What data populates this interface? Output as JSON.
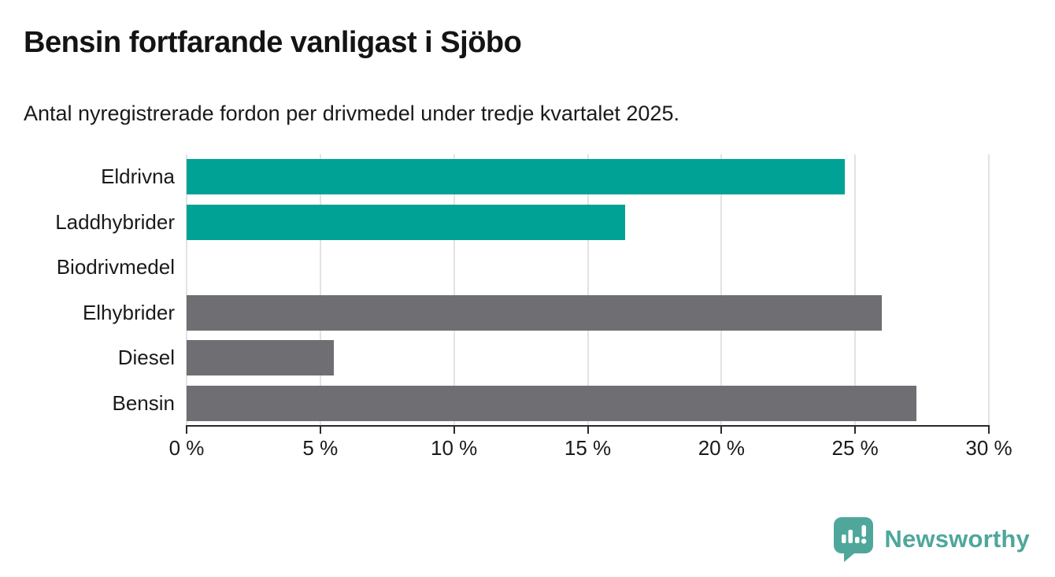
{
  "header": {
    "title": "Bensin fortfarande vanligast i Sjöbo",
    "subtitle": "Antal nyregistrerade fordon per drivmedel under tredje kvartalet 2025."
  },
  "chart_data": {
    "type": "bar",
    "orientation": "horizontal",
    "title": "Bensin fortfarande vanligast i Sjöbo",
    "subtitle": "Antal nyregistrerade fordon per drivmedel under tredje kvartalet 2025.",
    "categories": [
      "Eldrivna",
      "Laddhybrider",
      "Biodrivmedel",
      "Elhybrider",
      "Diesel",
      "Bensin"
    ],
    "values": [
      24.6,
      16.4,
      0,
      26.0,
      5.5,
      27.3
    ],
    "unit": "%",
    "bar_colors": [
      "#00a296",
      "#00a296",
      "#00a296",
      "#6e6e73",
      "#6e6e73",
      "#6e6e73"
    ],
    "xlabel": "",
    "ylabel": "",
    "xlim": [
      0,
      30
    ],
    "x_ticks": [
      {
        "value": 0,
        "label": "0 %"
      },
      {
        "value": 5,
        "label": "5 %"
      },
      {
        "value": 10,
        "label": "10 %"
      },
      {
        "value": 15,
        "label": "15 %"
      },
      {
        "value": 20,
        "label": "20 %"
      },
      {
        "value": 25,
        "label": "25 %"
      },
      {
        "value": 30,
        "label": "30 %"
      }
    ],
    "grid": true,
    "legend": false
  },
  "colors": {
    "teal_bar": "#00a296",
    "gray_bar": "#6e6e73",
    "grid": "#e3e3e3",
    "axis": "#2b2b2b",
    "text": "#1a1a1a",
    "brand_teal": "#4fa79b",
    "background": "#ffffff"
  },
  "footer": {
    "brand": "Newsworthy",
    "logo_icon": "newsworthy-speech-bubble-chart-icon"
  }
}
